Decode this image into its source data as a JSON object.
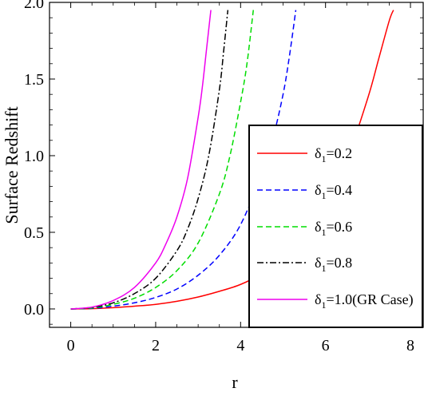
{
  "chart_data": {
    "type": "line",
    "title": "",
    "xlabel": "r",
    "ylabel": "Surface Redshift",
    "xlim": [
      -0.5,
      8.3
    ],
    "ylim": [
      -0.12,
      2.0
    ],
    "xticks": [
      0,
      2,
      4,
      6,
      8
    ],
    "xtick_labels": [
      "0",
      "2",
      "4",
      "6",
      "8"
    ],
    "yticks": [
      0.0,
      0.5,
      1.0,
      1.5,
      2.0
    ],
    "ytick_labels": [
      "0.0",
      "0.5",
      "1.0",
      "1.5",
      "2.0"
    ],
    "grid": false,
    "legend_position": "right",
    "series": [
      {
        "name": "=0.2",
        "symbol": "δ",
        "subscript": "1",
        "color": "#ff0000",
        "dash": "solid",
        "x": [
          0,
          0.5,
          1,
          1.5,
          2,
          2.5,
          3,
          3.5,
          4,
          4.5,
          5,
          5.5,
          6,
          6.5,
          7,
          7.25,
          7.5,
          7.6
        ],
        "y": [
          0,
          0.002,
          0.008,
          0.018,
          0.03,
          0.05,
          0.078,
          0.115,
          0.16,
          0.23,
          0.33,
          0.46,
          0.67,
          0.97,
          1.38,
          1.63,
          1.88,
          1.95
        ]
      },
      {
        "name": "=0.4",
        "symbol": "δ",
        "subscript": "1",
        "color": "#0000ff",
        "dash": "dashed",
        "x": [
          0,
          0.5,
          1,
          1.5,
          2,
          2.5,
          3,
          3.5,
          4,
          4.5,
          4.75,
          5,
          5.15,
          5.3
        ],
        "y": [
          0,
          0.004,
          0.018,
          0.04,
          0.075,
          0.13,
          0.22,
          0.35,
          0.55,
          0.88,
          1.1,
          1.4,
          1.65,
          1.95
        ]
      },
      {
        "name": "=0.6",
        "symbol": "δ",
        "subscript": "1",
        "color": "#00dd00",
        "dash": "dashed",
        "x": [
          0,
          0.5,
          1,
          1.5,
          2,
          2.5,
          3,
          3.5,
          3.75,
          4,
          4.15,
          4.3
        ],
        "y": [
          0,
          0.006,
          0.03,
          0.07,
          0.14,
          0.25,
          0.43,
          0.75,
          1.0,
          1.35,
          1.6,
          1.95
        ]
      },
      {
        "name": "=0.8",
        "symbol": "δ",
        "subscript": "1",
        "color": "#000000",
        "dash": "dashdot",
        "x": [
          0,
          0.5,
          1,
          1.5,
          2,
          2.5,
          2.75,
          3,
          3.25,
          3.5,
          3.6,
          3.7
        ],
        "y": [
          0,
          0.01,
          0.04,
          0.1,
          0.2,
          0.38,
          0.52,
          0.72,
          1.0,
          1.43,
          1.68,
          1.95
        ]
      },
      {
        "name": "=1.0(GR Case)",
        "symbol": "δ",
        "subscript": "1",
        "color": "#ee00ee",
        "dash": "solid",
        "x": [
          0,
          0.5,
          1,
          1.5,
          2,
          2.25,
          2.5,
          2.75,
          3,
          3.1,
          3.2,
          3.3
        ],
        "y": [
          0,
          0.012,
          0.055,
          0.14,
          0.3,
          0.43,
          0.6,
          0.85,
          1.25,
          1.45,
          1.7,
          1.95
        ]
      }
    ]
  }
}
